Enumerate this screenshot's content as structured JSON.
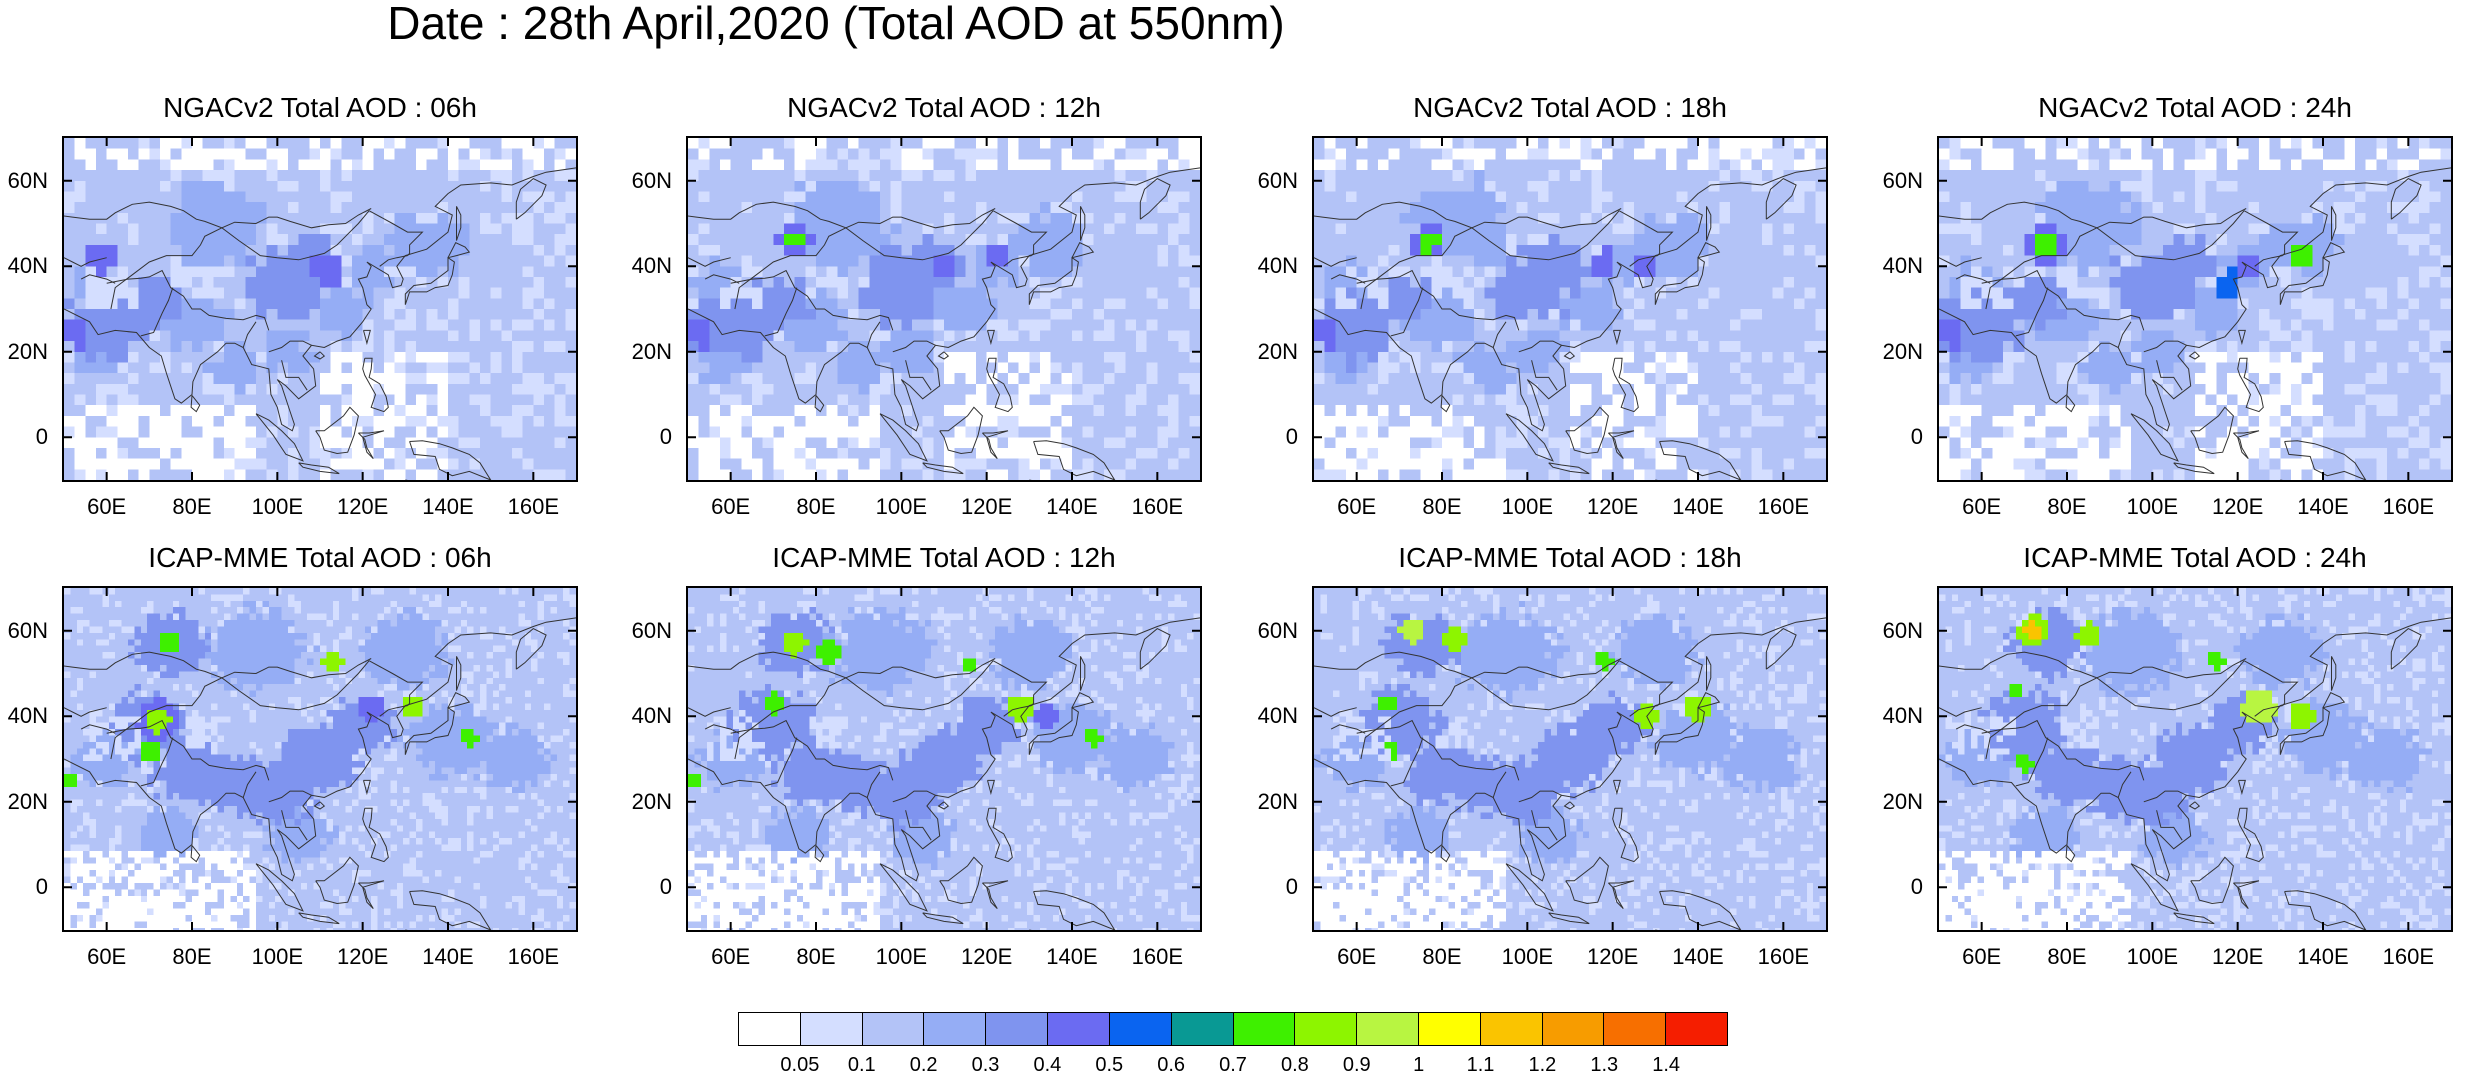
{
  "title": "Date : 28th April,2020 (Total AOD at 550nm)",
  "panels": [
    {
      "title": "NGACv2 Total AOD : 06h",
      "model": "NGACv2",
      "hour": "06h"
    },
    {
      "title": "NGACv2 Total AOD : 12h",
      "model": "NGACv2",
      "hour": "12h"
    },
    {
      "title": "NGACv2 Total AOD : 18h",
      "model": "NGACv2",
      "hour": "18h"
    },
    {
      "title": "NGACv2 Total AOD : 24h",
      "model": "NGACv2",
      "hour": "24h"
    },
    {
      "title": "ICAP-MME Total AOD : 06h",
      "model": "ICAP-MME",
      "hour": "06h"
    },
    {
      "title": "ICAP-MME Total AOD : 12h",
      "model": "ICAP-MME",
      "hour": "12h"
    },
    {
      "title": "ICAP-MME Total AOD : 18h",
      "model": "ICAP-MME",
      "hour": "18h"
    },
    {
      "title": "ICAP-MME Total AOD : 24h",
      "model": "ICAP-MME",
      "hour": "24h"
    }
  ],
  "map": {
    "lon_range": [
      50,
      170
    ],
    "lat_range": [
      -10,
      70
    ],
    "lon_ticks": [
      60,
      80,
      100,
      120,
      140,
      160
    ],
    "lon_tick_labels": [
      "60E",
      "80E",
      "100E",
      "120E",
      "140E",
      "160E"
    ],
    "lat_ticks": [
      0,
      20,
      40,
      60
    ],
    "lat_tick_labels": [
      "0",
      "20N",
      "40N",
      "60N"
    ]
  },
  "colorbar": {
    "colors": [
      "#ffffff",
      "#d4deff",
      "#b3c3f7",
      "#95adf5",
      "#7f94ef",
      "#6b6bf2",
      "#0a64f0",
      "#099994",
      "#3ef000",
      "#8df500",
      "#b8f541",
      "#ffff00",
      "#fac400",
      "#f79c00",
      "#f76f00",
      "#f51e00"
    ],
    "labels": [
      "0.05",
      "0.1",
      "0.2",
      "0.3",
      "0.4",
      "0.5",
      "0.6",
      "0.7",
      "0.8",
      "0.9",
      "1",
      "1.1",
      "1.2",
      "1.3",
      "1.4"
    ]
  }
}
